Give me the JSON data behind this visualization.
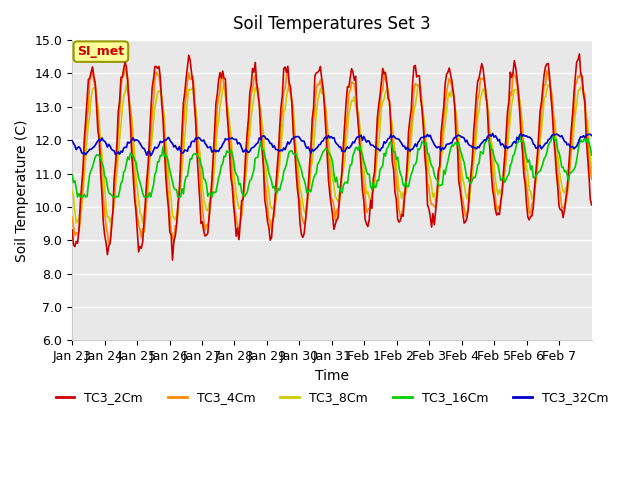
{
  "title": "Soil Temperatures Set 3",
  "xlabel": "Time",
  "ylabel": "Soil Temperature (C)",
  "ylim": [
    6.0,
    15.0
  ],
  "yticks": [
    6.0,
    7.0,
    8.0,
    9.0,
    10.0,
    11.0,
    12.0,
    13.0,
    14.0,
    15.0
  ],
  "xtick_labels": [
    "Jan 23",
    "Jan 24",
    "Jan 25",
    "Jan 26",
    "Jan 27",
    "Jan 28",
    "Jan 29",
    "Jan 30",
    "Jan 31",
    "Feb 1",
    "Feb 2",
    "Feb 3",
    "Feb 4",
    "Feb 5",
    "Feb 6",
    "Feb 7"
  ],
  "series_colors": [
    "#cc0000",
    "#ff8800",
    "#cccc00",
    "#00cc00",
    "#0000cc"
  ],
  "series_labels": [
    "TC3_2Cm",
    "TC3_4Cm",
    "TC3_8Cm",
    "TC3_16Cm",
    "TC3_32Cm"
  ],
  "legend_box_color": "#ffff99",
  "legend_box_edge": "#999900",
  "legend_label": "SI_met",
  "legend_label_color": "#cc0000",
  "bg_color": "#ffffff",
  "plot_bg_color": "#e8e8e8",
  "grid_color": "#ffffff",
  "title_fontsize": 12,
  "axis_fontsize": 10,
  "tick_fontsize": 9
}
